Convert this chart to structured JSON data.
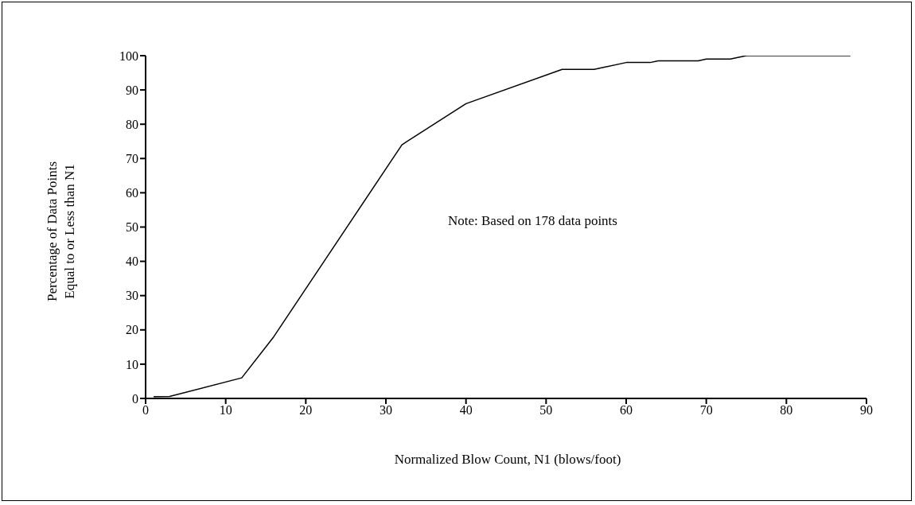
{
  "chart_data": {
    "type": "line",
    "xlabel": "Normalized Blow Count, N1 (blows/foot)",
    "ylabel": "Percentage of Data Points Equal to or Less than N1",
    "annotations": [
      "Note: Based on 178 data points"
    ],
    "series": [
      {
        "color": "#000000",
        "x": [
          1,
          3,
          12,
          16,
          32,
          40,
          52,
          56,
          60,
          63,
          64,
          69,
          70,
          73,
          75,
          88
        ],
        "values": [
          0.5,
          0.6,
          6,
          18,
          74,
          86,
          96,
          96,
          98,
          98,
          98.5,
          98.5,
          99,
          99,
          100,
          100
        ]
      }
    ],
    "xlim": [
      0,
      90
    ],
    "xticks": [
      0,
      10,
      20,
      30,
      40,
      50,
      60,
      70,
      80,
      90
    ],
    "ylim": [
      0,
      100
    ],
    "yticks": [
      0,
      10,
      20,
      30,
      40,
      50,
      60,
      70,
      80,
      90,
      100
    ],
    "grid": false,
    "marker": "none",
    "line_style": "solid"
  }
}
